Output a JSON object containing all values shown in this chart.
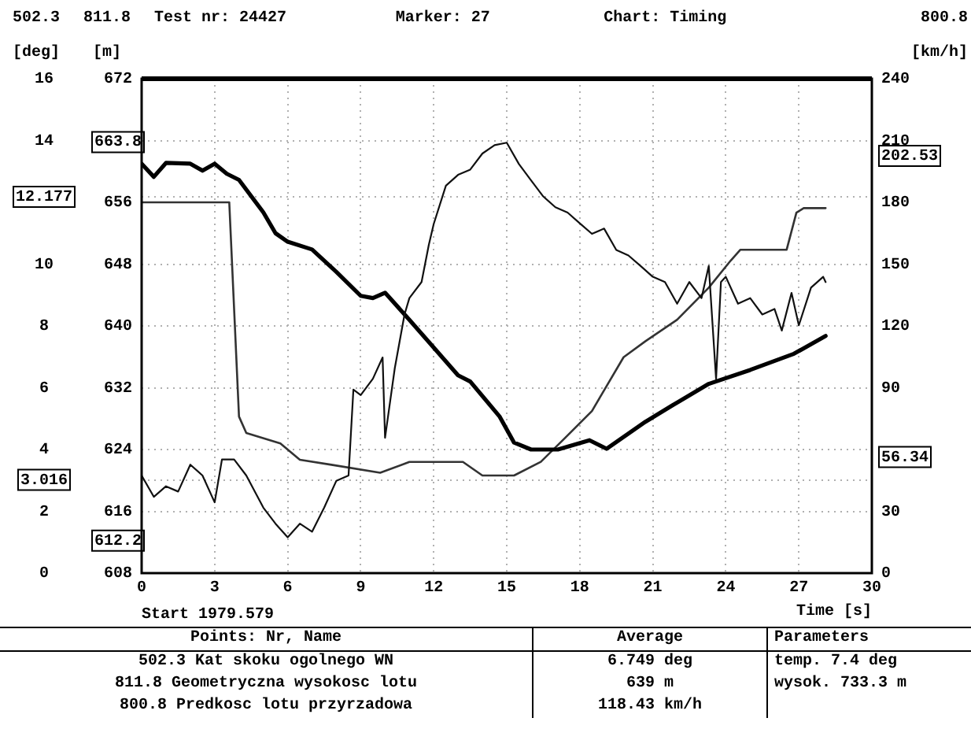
{
  "chart_data": {
    "type": "line",
    "xlabel": "Time [s]",
    "ylabel": "[deg]",
    "y2label": "[m]",
    "y3label": "[km/h]",
    "xlim": [
      0,
      30
    ],
    "xticks": [
      0,
      3,
      6,
      9,
      12,
      15,
      18,
      21,
      24,
      27,
      30
    ],
    "ylim": [
      0,
      16
    ],
    "yticks": [
      0,
      2,
      3.016,
      4,
      6,
      8,
      10,
      12.177,
      14,
      16
    ],
    "y2lim": [
      608,
      672
    ],
    "y2ticks": [
      608,
      612.2,
      616,
      624,
      632,
      640,
      648,
      656,
      663.8,
      672
    ],
    "y3lim": [
      0,
      240
    ],
    "y3ticks": [
      0,
      30,
      56.34,
      {
        "value": 60,
        "label": null
      },
      90,
      120,
      150,
      180,
      202.53,
      210,
      240
    ],
    "grid": true,
    "marker": "none",
    "line_style": "solid",
    "series": [
      {
        "color": "#111111",
        "x": [
          0,
          0.5,
          1,
          1.5,
          2,
          2.5,
          3,
          3.3,
          3.8,
          4.3,
          5,
          5.5,
          6,
          6.5,
          7,
          7.5,
          8,
          8.5,
          8.7,
          9,
          9.5,
          9.9,
          10,
          10.4,
          10.8,
          11,
          11.5,
          11.8,
          12,
          12.5,
          13,
          13.5,
          14,
          14.5,
          15,
          15.5,
          16,
          16.5,
          17,
          17.5,
          18,
          18.5,
          19,
          19.5,
          20,
          20.5,
          21,
          21.5,
          22,
          22.5,
          23,
          23.3,
          23.6,
          23.8,
          24,
          24.5,
          25,
          25.5,
          26,
          26.3,
          26.7,
          27,
          27.5,
          28,
          28.1
        ],
        "values": [
          3.16,
          2.47,
          2.81,
          2.64,
          3.51,
          3.16,
          2.29,
          3.68,
          3.68,
          3.16,
          2.12,
          1.6,
          1.16,
          1.6,
          1.34,
          2.12,
          2.99,
          3.16,
          5.94,
          5.76,
          6.29,
          6.98,
          4.38,
          6.63,
          8.37,
          8.9,
          9.42,
          10.63,
          11.3,
          12.54,
          12.89,
          13.06,
          13.58,
          13.85,
          13.93,
          13.24,
          12.71,
          12.19,
          11.84,
          11.67,
          11.32,
          10.98,
          11.15,
          10.46,
          10.28,
          9.94,
          9.59,
          9.42,
          8.72,
          9.42,
          8.9,
          9.94,
          6.29,
          9.42,
          9.59,
          8.72,
          8.9,
          8.37,
          8.55,
          7.85,
          9.07,
          8.02,
          9.24,
          9.59,
          9.42
        ]
      },
      {
        "color": "#000000",
        "axis": "y2",
        "x": [
          0,
          0.5,
          1,
          2,
          2.5,
          3,
          3.5,
          4,
          5,
          5.5,
          6,
          7,
          8,
          9,
          9.5,
          10,
          11,
          12,
          13,
          13.5,
          14.7,
          15.3,
          16,
          17.1,
          18.4,
          19.1,
          20.7,
          21.8,
          23.3,
          25,
          26.8,
          28.1
        ],
        "values": [
          661,
          659.3,
          661.1,
          661,
          660.1,
          661,
          659.7,
          658.9,
          654.7,
          652,
          650.9,
          649.9,
          647,
          643.9,
          643.6,
          644.3,
          640.8,
          637.2,
          633.6,
          632.8,
          628.3,
          624.9,
          624,
          624,
          625.2,
          624.1,
          627.6,
          629.7,
          632.5,
          634.3,
          636.4,
          638.7
        ]
      },
      {
        "color": "#333333",
        "axis": "y3",
        "x": [
          0,
          3.6,
          4,
          4.3,
          5.7,
          6.5,
          7.8,
          9.8,
          11,
          13.2,
          14,
          15.3,
          16.4,
          17.4,
          18.5,
          19.8,
          20.7,
          22,
          23.3,
          24.2,
          24.6,
          26.5,
          26.9,
          27.2,
          28.1
        ],
        "values": [
          180,
          180,
          76,
          68,
          63,
          55,
          52.6,
          48.7,
          54,
          54,
          47.4,
          47.4,
          54,
          65.7,
          78.7,
          104.8,
          112.6,
          123,
          138.6,
          151.7,
          157,
          157,
          175,
          177.2,
          177.2
        ]
      }
    ],
    "annotations": [
      "502.3",
      "811.8",
      "Test nr: 24427",
      "Marker: 27",
      "Chart: Timing",
      "800.8",
      "Start 1979.579",
      "Points: Nr, Name",
      "Average",
      "Parameters",
      "502.3 Kat skoku ogolnego WN",
      "6.749 deg",
      "temp. 7.4 deg",
      "811.8 Geometryczna wysokosc lotu",
      "639 m",
      "wysok. 733.3 m",
      "800.8 Predkosc lotu przyrzadowa",
      "118.43 km/h"
    ]
  }
}
